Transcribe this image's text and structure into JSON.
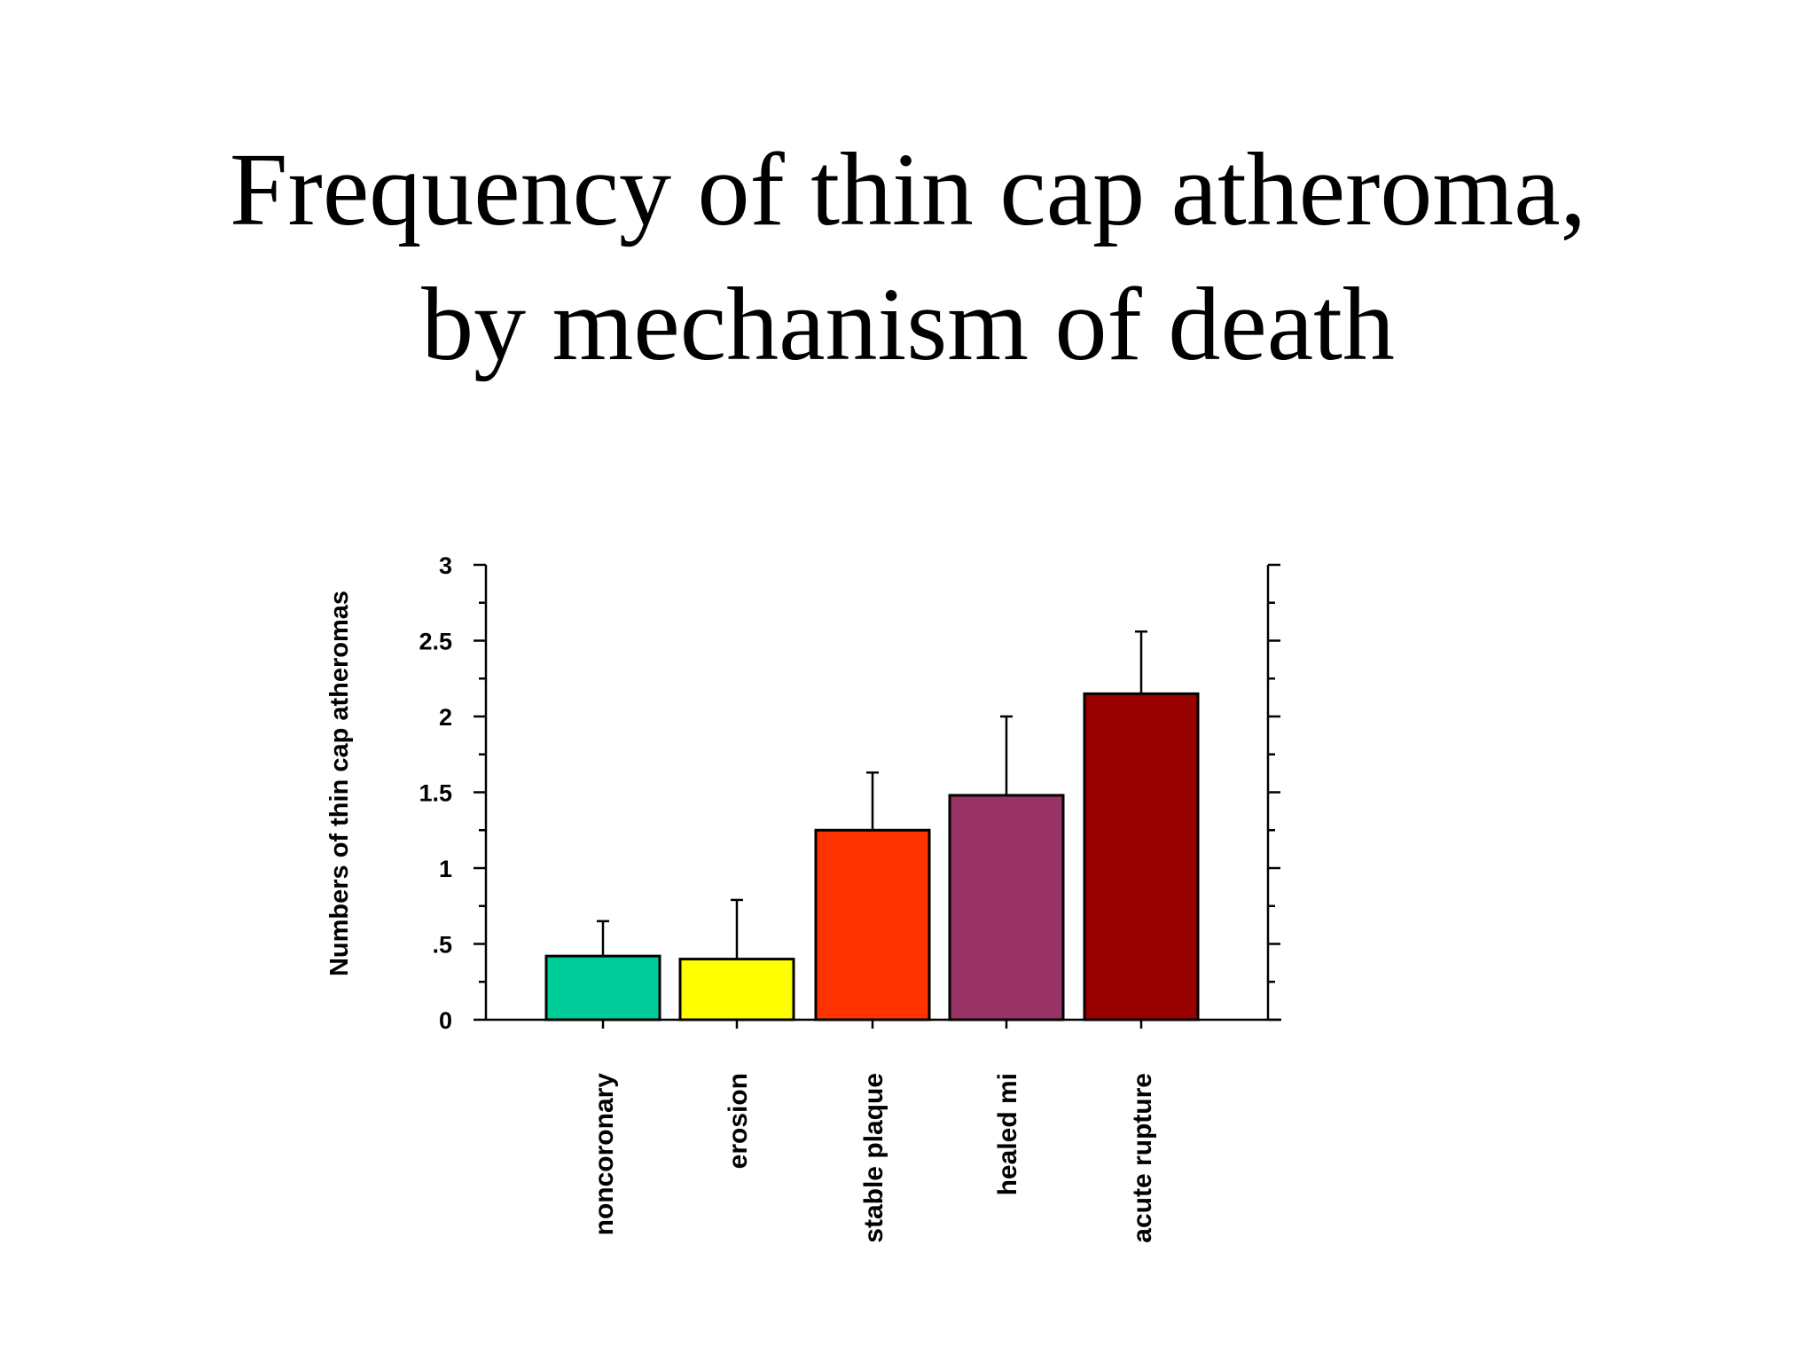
{
  "slide": {
    "title_line1": "Frequency of thin cap atheroma,",
    "title_line2": "by mechanism of death"
  },
  "chart_data": {
    "type": "bar",
    "title": "",
    "xlabel": "",
    "ylabel": "Numbers of thin cap atheromas",
    "categories": [
      "noncoronary",
      "erosion",
      "stable plaque",
      "healed mi",
      "acute rupture"
    ],
    "values": [
      0.42,
      0.4,
      1.25,
      1.48,
      2.15
    ],
    "error_upper": [
      0.65,
      0.79,
      1.63,
      2.0,
      2.56
    ],
    "colors": [
      "#00CC99",
      "#FFFF00",
      "#FF3300",
      "#993366",
      "#990000"
    ],
    "ylim": [
      0,
      3
    ],
    "yticks": [
      0,
      0.5,
      1,
      1.5,
      2,
      2.5,
      3
    ],
    "ytick_labels": [
      "0",
      ".5",
      "1",
      "1.5",
      "2",
      "2.5",
      "3"
    ],
    "grid": false,
    "legend": "none"
  }
}
